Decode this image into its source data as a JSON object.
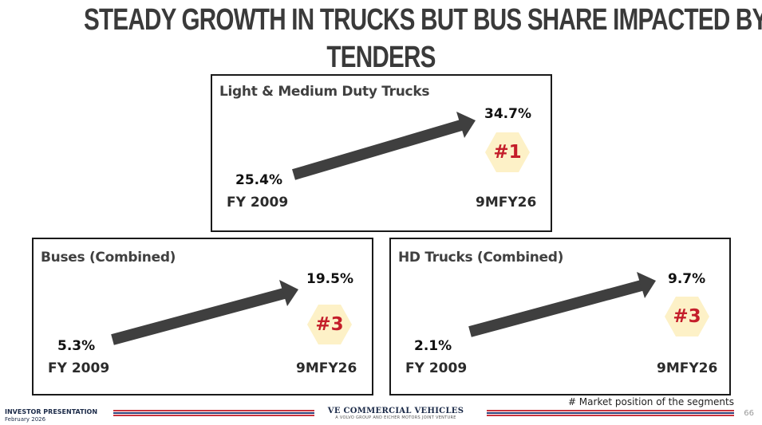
{
  "title": {
    "line1": "STEADY GROWTH IN TRUCKS BUT BUS SHARE IMPACTED BY",
    "line2": "TENDERS"
  },
  "segments": {
    "lmd": {
      "title": "Light & Medium Duty Trucks",
      "start_value": "25.4%",
      "start_label": "FY 2009",
      "end_value": "34.7%",
      "end_label": "9MFY26",
      "rank": "#1"
    },
    "bus": {
      "title": "Buses (Combined)",
      "start_value": "5.3%",
      "start_label": "FY 2009",
      "end_value": "19.5%",
      "end_label": "9MFY26",
      "rank": "#3"
    },
    "hd": {
      "title": "HD Trucks (Combined)",
      "start_value": "2.1%",
      "start_label": "FY 2009",
      "end_value": "9.7%",
      "end_label": "9MFY26",
      "rank": "#3"
    }
  },
  "footnote": "# Market position of the segments",
  "footer": {
    "label": "INVESTOR PRESENTATION",
    "date": "February 2026",
    "brand": "VE COMMERCIAL VEHICLES",
    "brand_sub": "A VOLVO GROUP AND EICHER MOTORS JOINT VENTURE",
    "page": "66"
  },
  "colors": {
    "arrow": "#3f3f3f",
    "rank_text": "#c41e2a",
    "rank_hex": "#fdf1c7",
    "stripe_red": "#c8323c",
    "stripe_blue": "#2b3f78"
  }
}
